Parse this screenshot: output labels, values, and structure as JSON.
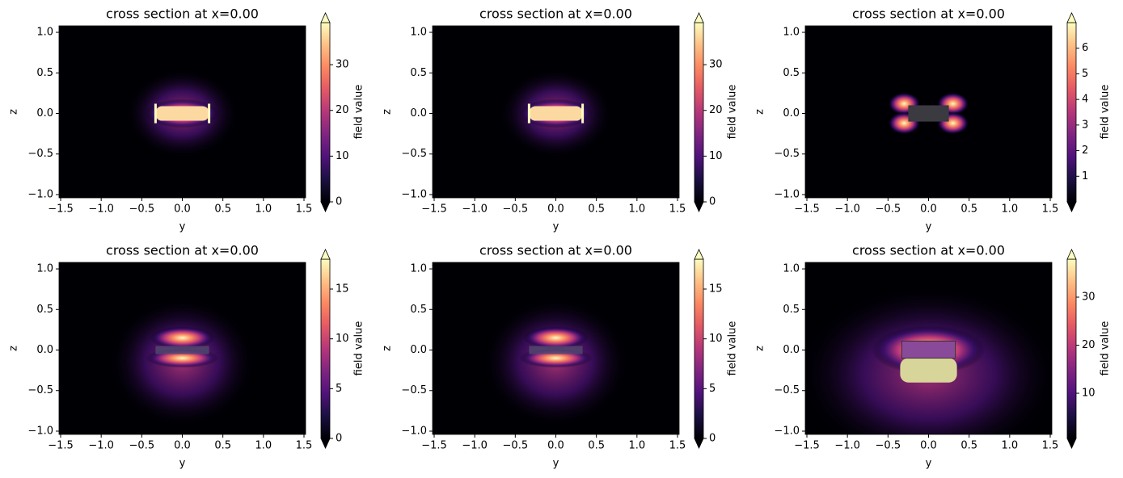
{
  "chart_data": [
    {
      "type": "heatmap",
      "title": "cross section at x=0.00",
      "xlabel": "y",
      "ylabel": "z",
      "colorbar_label": "field value",
      "colormap": "magma",
      "extend": "both",
      "xlim": [
        -1.52,
        1.52
      ],
      "ylim": [
        -1.04,
        1.08
      ],
      "xticks": [
        {
          "value": -1.5,
          "label": "−1.5"
        },
        {
          "value": -1.0,
          "label": "−1.0"
        },
        {
          "value": -0.5,
          "label": "−0.5"
        },
        {
          "value": 0,
          "label": "0.0"
        },
        0.5,
        {
          "value": 1.0,
          "label": "1.0"
        },
        1.5
      ],
      "yticks": [
        {
          "value": -1.0,
          "label": "−1.0"
        },
        {
          "value": -0.5,
          "label": "−0.5"
        },
        {
          "value": 0,
          "label": "0.0"
        },
        0.5,
        {
          "value": 1.0,
          "label": "1.0"
        }
      ],
      "clim": [
        0,
        39.2
      ],
      "cticks": [
        0,
        10,
        20,
        30
      ]
    },
    {
      "type": "heatmap",
      "title": "cross section at x=0.00",
      "xlabel": "y",
      "ylabel": "z",
      "colorbar_label": "field value",
      "colormap": "magma",
      "extend": "both",
      "xlim": [
        -1.52,
        1.52
      ],
      "ylim": [
        -1.04,
        1.08
      ],
      "xticks": [
        {
          "value": -1.5,
          "label": "−1.5"
        },
        {
          "value": -1.0,
          "label": "−1.0"
        },
        {
          "value": -0.5,
          "label": "−0.5"
        },
        {
          "value": 0,
          "label": "0.0"
        },
        0.5,
        {
          "value": 1.0,
          "label": "1.0"
        },
        1.5
      ],
      "yticks": [
        {
          "value": -1.0,
          "label": "−1.0"
        },
        {
          "value": -0.5,
          "label": "−0.5"
        },
        {
          "value": 0,
          "label": "0.0"
        },
        0.5,
        {
          "value": 1.0,
          "label": "1.0"
        }
      ],
      "clim": [
        0,
        39.2
      ],
      "cticks": [
        0,
        10,
        20,
        30
      ]
    },
    {
      "type": "heatmap",
      "title": "cross section at x=0.00",
      "xlabel": "y",
      "ylabel": "z",
      "colorbar_label": "field value",
      "colormap": "magma",
      "extend": "both",
      "xlim": [
        -1.52,
        1.52
      ],
      "ylim": [
        -1.04,
        1.08
      ],
      "xticks": [
        {
          "value": -1.5,
          "label": "−1.5"
        },
        {
          "value": -1.0,
          "label": "−1.0"
        },
        {
          "value": -0.5,
          "label": "−0.5"
        },
        {
          "value": 0,
          "label": "0.0"
        },
        0.5,
        {
          "value": 1.0,
          "label": "1.0"
        },
        1.5
      ],
      "yticks": [
        {
          "value": -1.0,
          "label": "−1.0"
        },
        {
          "value": -0.5,
          "label": "−0.5"
        },
        {
          "value": 0,
          "label": "0.0"
        },
        0.5,
        {
          "value": 1.0,
          "label": "1.0"
        }
      ],
      "clim": [
        0,
        7.0
      ],
      "cticks": [
        1,
        2,
        3,
        4,
        5,
        6
      ]
    },
    {
      "type": "heatmap",
      "title": "cross section at x=0.00",
      "xlabel": "y",
      "ylabel": "z",
      "colorbar_label": "field value",
      "colormap": "magma",
      "extend": "both",
      "xlim": [
        -1.52,
        1.52
      ],
      "ylim": [
        -1.04,
        1.08
      ],
      "xticks": [
        {
          "value": -1.5,
          "label": "−1.5"
        },
        {
          "value": -1.0,
          "label": "−1.0"
        },
        {
          "value": -0.5,
          "label": "−0.5"
        },
        {
          "value": 0,
          "label": "0.0"
        },
        0.5,
        {
          "value": 1.0,
          "label": "1.0"
        },
        1.5
      ],
      "yticks": [
        {
          "value": -1.0,
          "label": "−1.0"
        },
        {
          "value": -0.5,
          "label": "−0.5"
        },
        {
          "value": 0,
          "label": "0.0"
        },
        0.5,
        {
          "value": 1.0,
          "label": "1.0"
        }
      ],
      "clim": [
        0,
        18
      ],
      "cticks": [
        0,
        5,
        10,
        15
      ]
    },
    {
      "type": "heatmap",
      "title": "cross section at x=0.00",
      "xlabel": "y",
      "ylabel": "z",
      "colorbar_label": "field value",
      "colormap": "magma",
      "extend": "both",
      "xlim": [
        -1.52,
        1.52
      ],
      "ylim": [
        -1.04,
        1.08
      ],
      "xticks": [
        {
          "value": -1.5,
          "label": "−1.5"
        },
        {
          "value": -1.0,
          "label": "−1.0"
        },
        {
          "value": -0.5,
          "label": "−0.5"
        },
        {
          "value": 0,
          "label": "0.0"
        },
        0.5,
        {
          "value": 1.0,
          "label": "1.0"
        },
        1.5
      ],
      "yticks": [
        {
          "value": -1.0,
          "label": "−1.0"
        },
        {
          "value": -0.5,
          "label": "−0.5"
        },
        {
          "value": 0,
          "label": "0.0"
        },
        0.5,
        {
          "value": 1.0,
          "label": "1.0"
        }
      ],
      "clim": [
        0,
        18
      ],
      "cticks": [
        0,
        5,
        10,
        15
      ]
    },
    {
      "type": "heatmap",
      "title": "cross section at x=0.00",
      "xlabel": "y",
      "ylabel": "z",
      "colorbar_label": "field value",
      "colormap": "magma",
      "extend": "both",
      "xlim": [
        -1.52,
        1.52
      ],
      "ylim": [
        -1.04,
        1.08
      ],
      "xticks": [
        {
          "value": -1.5,
          "label": "−1.5"
        },
        {
          "value": -1.0,
          "label": "−1.0"
        },
        {
          "value": -0.5,
          "label": "−0.5"
        },
        {
          "value": 0,
          "label": "0.0"
        },
        0.5,
        {
          "value": 1.0,
          "label": "1.0"
        },
        1.5
      ],
      "yticks": [
        {
          "value": -1.0,
          "label": "−1.0"
        },
        {
          "value": -0.5,
          "label": "−0.5"
        },
        {
          "value": 0,
          "label": "0.0"
        },
        0.5,
        {
          "value": 1.0,
          "label": "1.0"
        }
      ],
      "clim": [
        0.6,
        37.9
      ],
      "cticks": [
        10,
        20,
        30
      ]
    }
  ]
}
